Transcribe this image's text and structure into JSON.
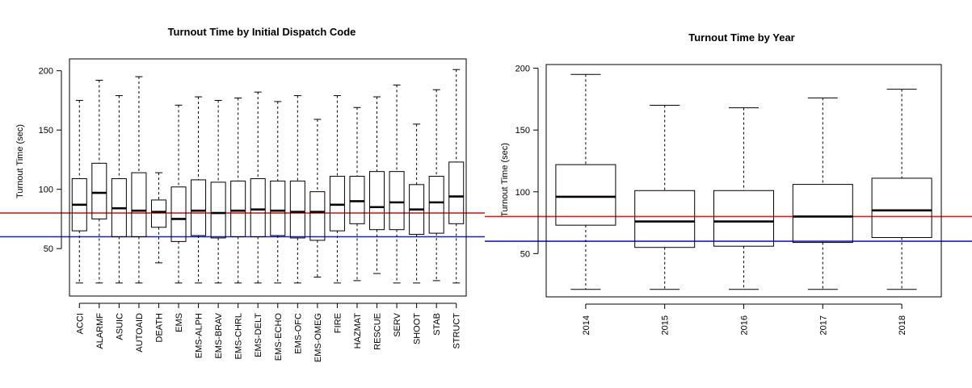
{
  "chart_data": [
    {
      "type": "boxplot",
      "title": "Turnout Time by Initial Dispatch Code",
      "xlabel": "",
      "ylabel": "Turnout Time (sec)",
      "ylim": [
        10,
        210
      ],
      "yticks": [
        50,
        100,
        150,
        200
      ],
      "grid": false,
      "reference_lines": [
        {
          "y": 80,
          "color": "#d42020"
        },
        {
          "y": 60,
          "color": "#2020b0"
        }
      ],
      "categories": [
        "ACCI",
        "ALARMF",
        "ASUIC",
        "AUTOAID",
        "DEATH",
        "EMS",
        "EMS-ALPH",
        "EMS-BRAV",
        "EMS-CHRL",
        "EMS-DELT",
        "EMS-ECHO",
        "EMS-OFC",
        "EMS-OMEG",
        "FIRE",
        "HAZMAT",
        "RESCUE",
        "SERV",
        "SHOOT",
        "STAB",
        "STRUCT"
      ],
      "boxes": [
        {
          "min": 21,
          "q1": 65,
          "median": 87,
          "q3": 109,
          "max": 175
        },
        {
          "min": 21,
          "q1": 75,
          "median": 97,
          "q3": 122,
          "max": 192
        },
        {
          "min": 21,
          "q1": 60,
          "median": 84,
          "q3": 109,
          "max": 179
        },
        {
          "min": 21,
          "q1": 60,
          "median": 82,
          "q3": 114,
          "max": 195
        },
        {
          "min": 38,
          "q1": 68,
          "median": 81,
          "q3": 91,
          "max": 114
        },
        {
          "min": 21,
          "q1": 56,
          "median": 75,
          "q3": 102,
          "max": 171
        },
        {
          "min": 21,
          "q1": 61,
          "median": 82,
          "q3": 108,
          "max": 178
        },
        {
          "min": 21,
          "q1": 59,
          "median": 80,
          "q3": 106,
          "max": 175
        },
        {
          "min": 21,
          "q1": 60,
          "median": 82,
          "q3": 107,
          "max": 177
        },
        {
          "min": 21,
          "q1": 60,
          "median": 83,
          "q3": 109,
          "max": 182
        },
        {
          "min": 21,
          "q1": 61,
          "median": 82,
          "q3": 107,
          "max": 174
        },
        {
          "min": 21,
          "q1": 59,
          "median": 81,
          "q3": 107,
          "max": 179
        },
        {
          "min": 26,
          "q1": 57,
          "median": 81,
          "q3": 98,
          "max": 159
        },
        {
          "min": 21,
          "q1": 65,
          "median": 87,
          "q3": 111,
          "max": 179
        },
        {
          "min": 23,
          "q1": 71,
          "median": 90,
          "q3": 111,
          "max": 169
        },
        {
          "min": 29,
          "q1": 66,
          "median": 85,
          "q3": 115,
          "max": 178
        },
        {
          "min": 21,
          "q1": 66,
          "median": 89,
          "q3": 115,
          "max": 188
        },
        {
          "min": 21,
          "q1": 62,
          "median": 83,
          "q3": 104,
          "max": 155
        },
        {
          "min": 23,
          "q1": 63,
          "median": 89,
          "q3": 111,
          "max": 184
        },
        {
          "min": 21,
          "q1": 71,
          "median": 94,
          "q3": 123,
          "max": 201
        }
      ]
    },
    {
      "type": "boxplot",
      "title": "Turnout Time by Year",
      "xlabel": "",
      "ylabel": "Turnout Time (sec)",
      "ylim": [
        15,
        203
      ],
      "yticks": [
        50,
        100,
        150,
        200
      ],
      "grid": false,
      "reference_lines": [
        {
          "y": 80,
          "color": "#d42020"
        },
        {
          "y": 60,
          "color": "#2020b0"
        }
      ],
      "categories": [
        "2014",
        "2015",
        "2016",
        "2017",
        "2018"
      ],
      "boxes": [
        {
          "min": 21,
          "q1": 73,
          "median": 96,
          "q3": 122,
          "max": 195
        },
        {
          "min": 21,
          "q1": 55,
          "median": 76,
          "q3": 101,
          "max": 170
        },
        {
          "min": 21,
          "q1": 56,
          "median": 76,
          "q3": 101,
          "max": 168
        },
        {
          "min": 21,
          "q1": 59,
          "median": 80,
          "q3": 106,
          "max": 176
        },
        {
          "min": 21,
          "q1": 63,
          "median": 85,
          "q3": 111,
          "max": 183
        }
      ]
    }
  ]
}
